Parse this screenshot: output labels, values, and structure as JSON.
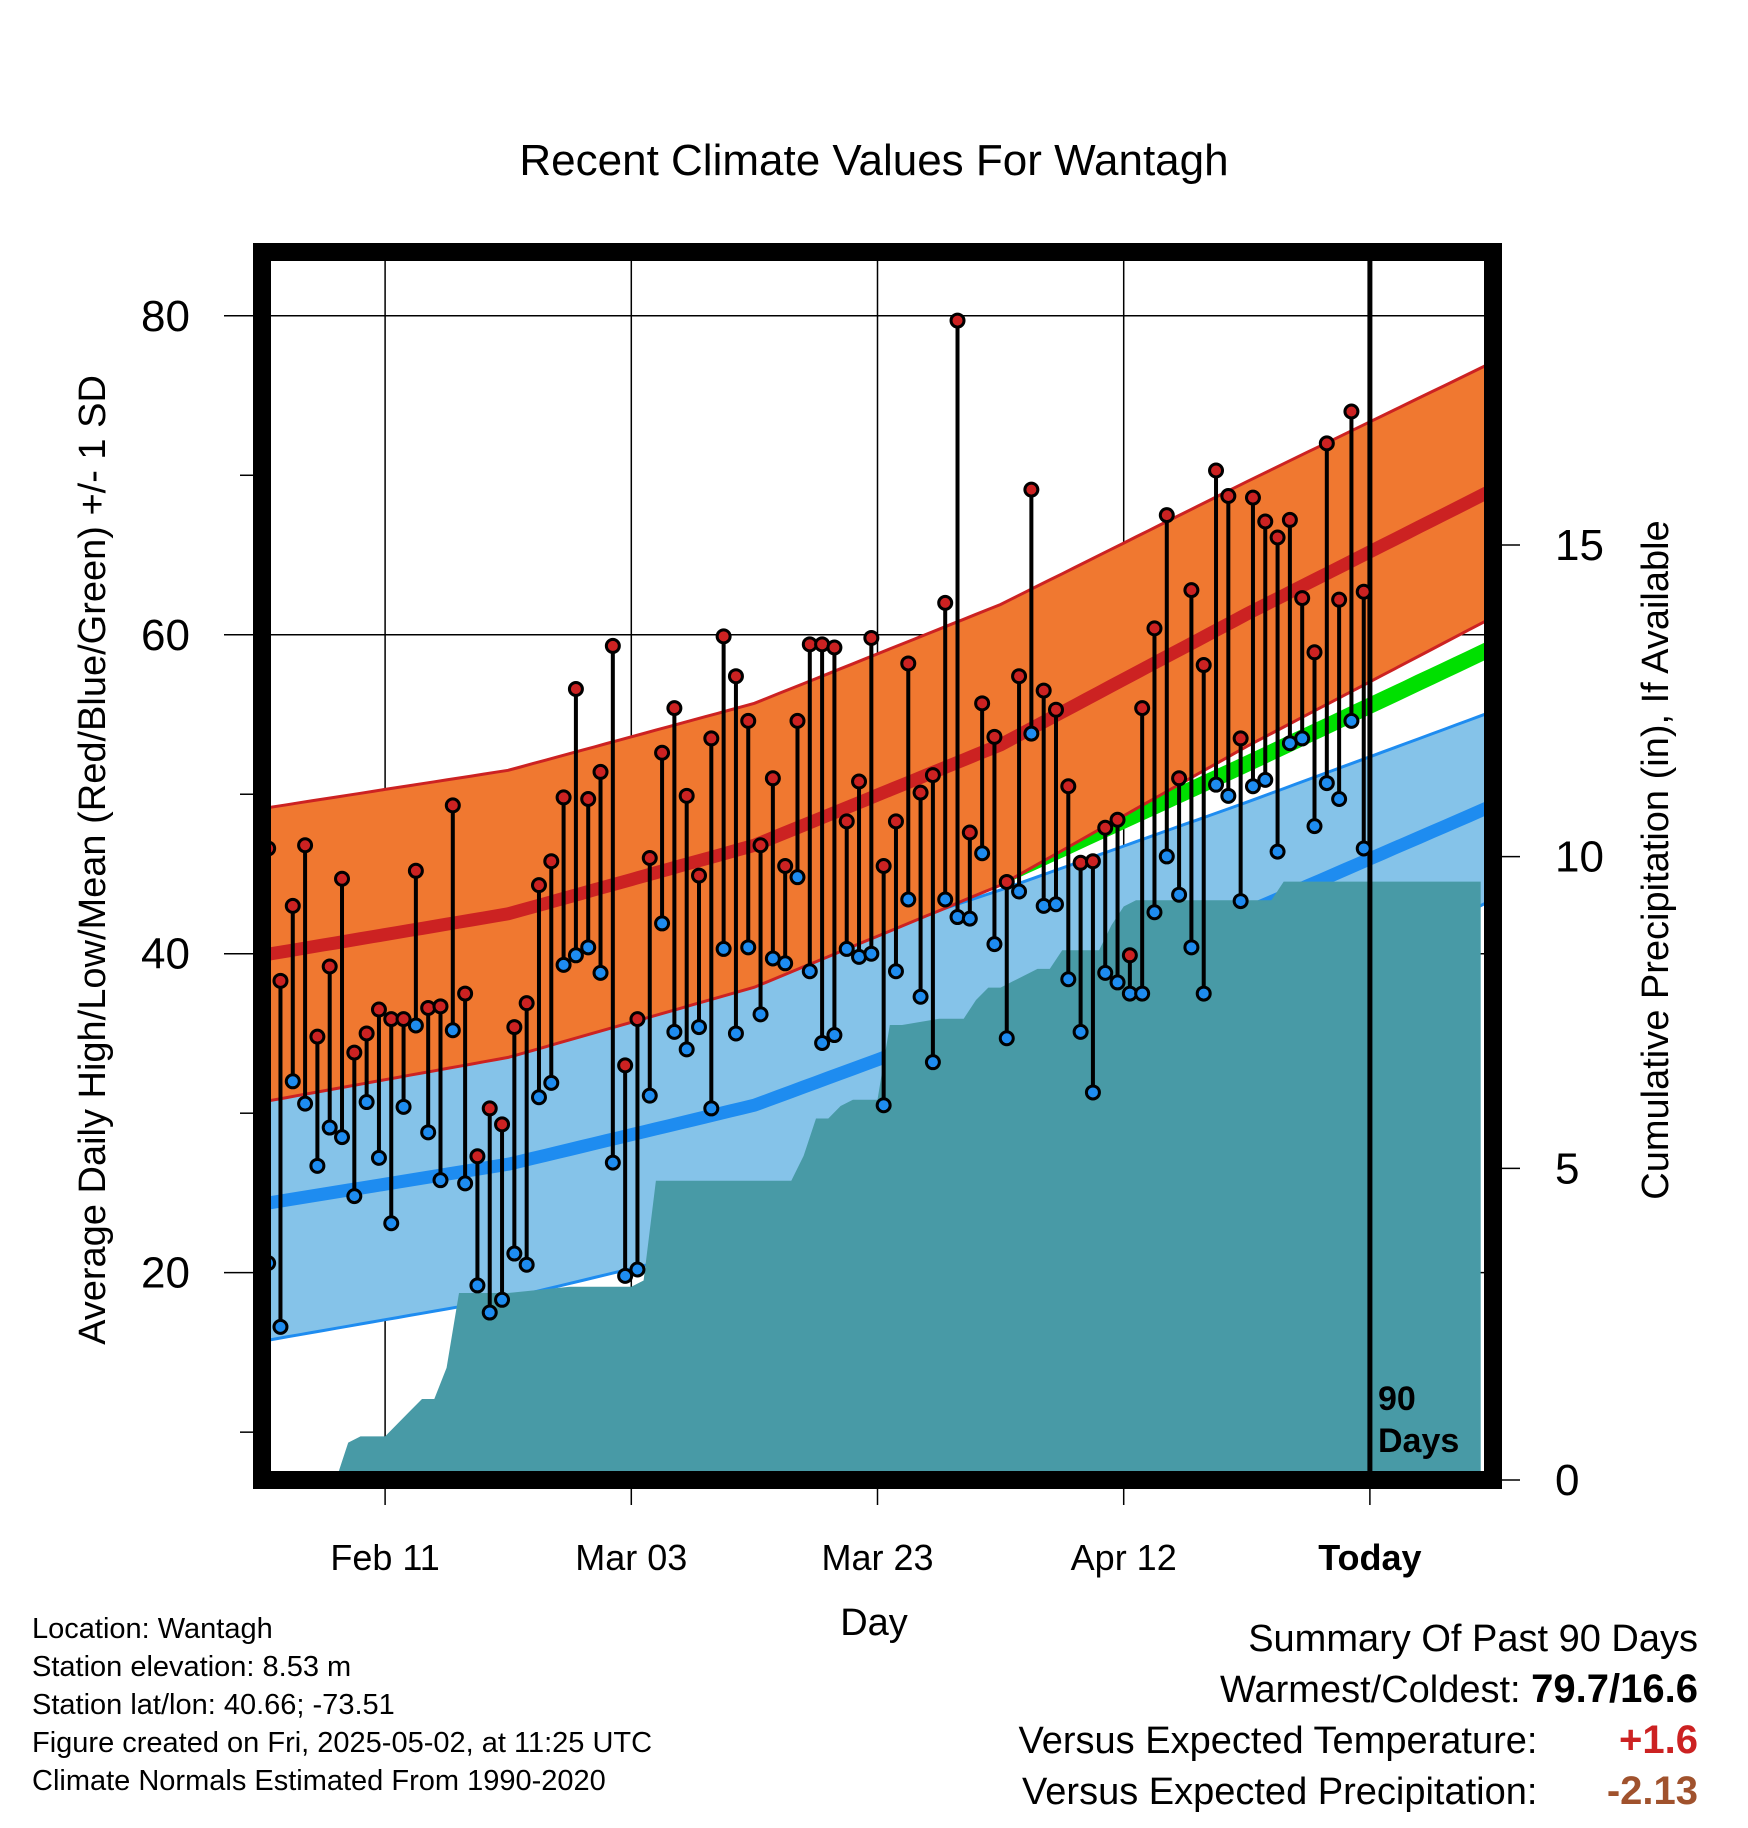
{
  "chart_data": {
    "type": "line",
    "title": "Recent Climate Values For Wantagh",
    "xlabel": "Day",
    "ylabel": "Average Daily High/Low/Mean (Red/Blue/Green) +/- 1 SD",
    "y2label": "Cumulative Precipitation (in), If Available",
    "x_tick_labels": [
      "Feb 11",
      "Mar 03",
      "Mar 23",
      "Apr 12",
      "Today"
    ],
    "x_tick_days": [
      10,
      30,
      50,
      70,
      90
    ],
    "xlim": [
      0,
      100
    ],
    "ylim": [
      7,
      84
    ],
    "y2lim": [
      0,
      19.7
    ],
    "y_ticks": [
      20,
      40,
      60,
      80
    ],
    "y2_ticks": [
      0,
      5,
      10,
      15
    ],
    "today_marker_label": "90 Days",
    "grid": true,
    "colors": {
      "high_band": "#f07830",
      "high_line": "#cc2222",
      "low_band": "#85c3e9",
      "low_line": "#1e8cf0",
      "mean_line": "#00e000",
      "precip_fill": "#489aa6",
      "high_dot": "#cc2222",
      "low_dot": "#1e8cf0"
    },
    "normal_high": {
      "days": [
        0,
        20,
        40,
        60,
        80,
        100
      ],
      "mean": [
        39.9,
        42.5,
        46.8,
        53.1,
        61.3,
        69.1
      ],
      "sd": [
        9.2,
        9.0,
        8.9,
        8.8,
        8.3,
        8.0
      ]
    },
    "normal_low": {
      "days": [
        0,
        20,
        40,
        60,
        80,
        100
      ],
      "mean": [
        24.3,
        26.8,
        30.5,
        36.2,
        42.6,
        49.3
      ],
      "sd": [
        8.6,
        8.4,
        8.4,
        7.8,
        6.9,
        5.9
      ]
    },
    "normal_mean": {
      "days": [
        0,
        20,
        40,
        60,
        80,
        100
      ],
      "values": [
        32.3,
        34.9,
        38.6,
        44.8,
        51.9,
        59.2
      ]
    },
    "daily_highs": [
      46.6,
      38.3,
      43.0,
      46.8,
      34.8,
      39.2,
      44.7,
      33.8,
      35.0,
      36.5,
      35.9,
      35.9,
      45.2,
      36.6,
      36.7,
      49.3,
      37.5,
      27.3,
      30.3,
      29.3,
      35.4,
      36.9,
      44.3,
      45.8,
      49.8,
      56.6,
      49.7,
      51.4,
      59.3,
      33.0,
      35.9,
      46.0,
      52.6,
      55.4,
      49.9,
      44.9,
      53.5,
      59.9,
      57.4,
      54.6,
      46.8,
      51.0,
      45.5,
      54.6,
      59.4,
      59.4,
      59.2,
      48.3,
      50.8,
      59.8,
      45.5,
      48.3,
      58.2,
      50.1,
      51.2,
      62.0,
      79.7,
      47.6,
      55.7,
      53.6,
      44.5,
      57.4,
      69.1,
      56.5,
      55.3,
      50.5,
      45.7,
      45.8,
      47.9,
      48.4,
      39.9,
      55.4,
      60.4,
      67.5,
      51.0,
      62.8,
      58.1,
      70.3,
      68.7,
      53.5,
      68.6,
      67.1,
      66.1,
      67.2,
      62.3,
      58.9,
      72.0,
      62.2,
      74.0,
      62.7
    ],
    "daily_lows": [
      20.6,
      16.6,
      32.0,
      30.6,
      26.7,
      29.1,
      28.5,
      24.8,
      30.7,
      27.2,
      23.1,
      30.4,
      35.5,
      28.8,
      25.8,
      35.2,
      25.6,
      19.2,
      17.5,
      18.3,
      21.2,
      20.5,
      31.0,
      31.9,
      39.3,
      39.9,
      40.4,
      38.8,
      26.9,
      19.8,
      20.2,
      31.1,
      41.9,
      35.1,
      34.0,
      35.4,
      30.3,
      40.3,
      35.0,
      40.4,
      36.2,
      39.7,
      39.4,
      44.8,
      38.9,
      34.4,
      34.9,
      40.3,
      39.8,
      40.0,
      30.5,
      38.9,
      43.4,
      37.3,
      33.2,
      43.4,
      42.3,
      42.2,
      46.3,
      40.6,
      34.7,
      43.9,
      53.8,
      43.0,
      43.1,
      38.4,
      35.1,
      31.3,
      38.8,
      38.2,
      37.5,
      37.5,
      42.6,
      46.1,
      43.7,
      40.4,
      37.5,
      50.6,
      49.9,
      43.3,
      50.5,
      50.9,
      46.4,
      53.2,
      53.5,
      48.0,
      50.7,
      49.7,
      54.6,
      46.6
    ],
    "cumulative_precip": {
      "days": [
        0,
        6,
        7,
        8,
        10,
        11,
        12,
        13,
        14,
        15,
        16,
        20,
        25,
        30,
        31,
        32,
        35,
        40,
        43,
        44,
        45,
        46,
        47,
        48,
        50,
        51,
        52,
        55,
        57,
        58,
        59,
        60,
        61,
        63,
        64,
        65,
        66,
        68,
        69,
        70,
        71,
        72,
        75,
        80,
        82,
        83,
        84,
        85,
        90,
        99
      ],
      "values": [
        0,
        0,
        0.6,
        0.7,
        0.7,
        0.9,
        1.1,
        1.3,
        1.3,
        1.8,
        3.0,
        3.0,
        3.1,
        3.1,
        3.2,
        4.8,
        4.8,
        4.8,
        4.8,
        5.2,
        5.8,
        5.8,
        6.0,
        6.1,
        6.1,
        7.3,
        7.3,
        7.4,
        7.4,
        7.7,
        7.9,
        7.9,
        8.0,
        8.2,
        8.2,
        8.5,
        8.5,
        8.5,
        8.9,
        9.2,
        9.3,
        9.3,
        9.3,
        9.3,
        9.3,
        9.6,
        9.6,
        9.6,
        9.6,
        9.6
      ]
    }
  },
  "footer": {
    "location": "Location: Wantagh",
    "elevation": "Station elevation: 8.53 m",
    "latlon": "Station lat/lon: 40.66; -73.51",
    "created": "Figure created on Fri, 2025-05-02, at 11:25 UTC",
    "normals": "Climate Normals Estimated From 1990-2020"
  },
  "summary": {
    "heading": "Summary Of Past 90 Days",
    "warm_cold_label": "Warmest/Coldest:",
    "warm_cold_value": "79.7/16.6",
    "temp_label": "Versus Expected Temperature:",
    "temp_value": "+1.6",
    "temp_color": "#cc2222",
    "precip_label": "Versus Expected Precipitation:",
    "precip_value": "-2.13",
    "precip_color": "#a0522d"
  }
}
